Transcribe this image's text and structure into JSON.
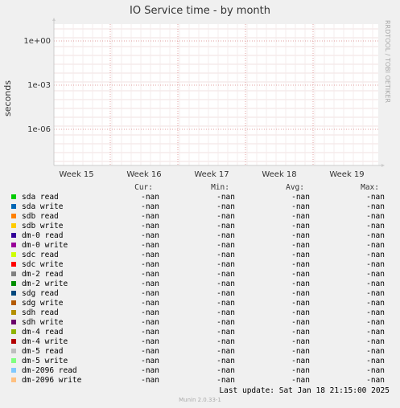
{
  "chart_data": {
    "type": "line",
    "title": "IO Service time - by month",
    "ylabel": "seconds",
    "scale": "log",
    "yticks": [
      "1e+00",
      "1e-03",
      "1e-06"
    ],
    "xticks": [
      "Week 15",
      "Week 16",
      "Week 17",
      "Week 18",
      "Week 19"
    ],
    "grid": true,
    "side_text": "RRDTOOL / TOBI OETIKER",
    "legend_headers": [
      "Cur:",
      "Min:",
      "Avg:",
      "Max:"
    ],
    "series": [
      {
        "name": "sda read",
        "color": "#00cc00",
        "cur": "-nan",
        "min": "-nan",
        "avg": "-nan",
        "max": "-nan"
      },
      {
        "name": "sda write",
        "color": "#0066b3",
        "cur": "-nan",
        "min": "-nan",
        "avg": "-nan",
        "max": "-nan"
      },
      {
        "name": "sdb read",
        "color": "#ff8000",
        "cur": "-nan",
        "min": "-nan",
        "avg": "-nan",
        "max": "-nan"
      },
      {
        "name": "sdb write",
        "color": "#ffcc00",
        "cur": "-nan",
        "min": "-nan",
        "avg": "-nan",
        "max": "-nan"
      },
      {
        "name": "dm-0 read",
        "color": "#330099",
        "cur": "-nan",
        "min": "-nan",
        "avg": "-nan",
        "max": "-nan"
      },
      {
        "name": "dm-0 write",
        "color": "#990099",
        "cur": "-nan",
        "min": "-nan",
        "avg": "-nan",
        "max": "-nan"
      },
      {
        "name": "sdc read",
        "color": "#ccff00",
        "cur": "-nan",
        "min": "-nan",
        "avg": "-nan",
        "max": "-nan"
      },
      {
        "name": "sdc write",
        "color": "#ff0000",
        "cur": "-nan",
        "min": "-nan",
        "avg": "-nan",
        "max": "-nan"
      },
      {
        "name": "dm-2 read",
        "color": "#808080",
        "cur": "-nan",
        "min": "-nan",
        "avg": "-nan",
        "max": "-nan"
      },
      {
        "name": "dm-2 write",
        "color": "#008f00",
        "cur": "-nan",
        "min": "-nan",
        "avg": "-nan",
        "max": "-nan"
      },
      {
        "name": "sdg read",
        "color": "#00487d",
        "cur": "-nan",
        "min": "-nan",
        "avg": "-nan",
        "max": "-nan"
      },
      {
        "name": "sdg write",
        "color": "#b35a00",
        "cur": "-nan",
        "min": "-nan",
        "avg": "-nan",
        "max": "-nan"
      },
      {
        "name": "sdh read",
        "color": "#b38f00",
        "cur": "-nan",
        "min": "-nan",
        "avg": "-nan",
        "max": "-nan"
      },
      {
        "name": "sdh write",
        "color": "#6b006b",
        "cur": "-nan",
        "min": "-nan",
        "avg": "-nan",
        "max": "-nan"
      },
      {
        "name": "dm-4 read",
        "color": "#8fb300",
        "cur": "-nan",
        "min": "-nan",
        "avg": "-nan",
        "max": "-nan"
      },
      {
        "name": "dm-4 write",
        "color": "#b30000",
        "cur": "-nan",
        "min": "-nan",
        "avg": "-nan",
        "max": "-nan"
      },
      {
        "name": "dm-5 read",
        "color": "#bebebe",
        "cur": "-nan",
        "min": "-nan",
        "avg": "-nan",
        "max": "-nan"
      },
      {
        "name": "dm-5 write",
        "color": "#80ff80",
        "cur": "-nan",
        "min": "-nan",
        "avg": "-nan",
        "max": "-nan"
      },
      {
        "name": "dm-2096 read",
        "color": "#80c9ff",
        "cur": "-nan",
        "min": "-nan",
        "avg": "-nan",
        "max": "-nan"
      },
      {
        "name": "dm-2096 write",
        "color": "#ffc080",
        "cur": "-nan",
        "min": "-nan",
        "avg": "-nan",
        "max": "-nan"
      }
    ]
  },
  "footer": {
    "last_update": "Last update:  Sat Jan 18 21:15:00 2025",
    "munin": "Munin 2.0.33-1"
  }
}
